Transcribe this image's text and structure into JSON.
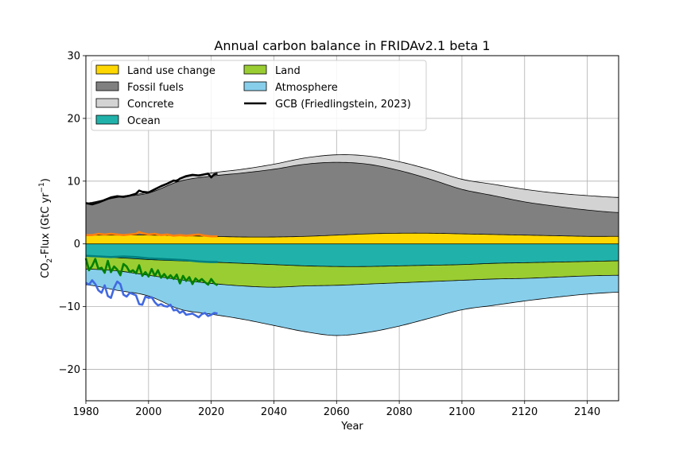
{
  "chart_data": {
    "type": "area",
    "title": "Annual carbon balance in FRIDAv2.1 beta 1",
    "xlabel": "Year",
    "ylabel": "CO2-Flux (GtC yr⁻¹)",
    "ylabel_parts": {
      "main": "CO",
      "sub": "2",
      "rest": "-Flux (GtC yr",
      "sup": "−1",
      "end": ")"
    },
    "xlim": [
      1980,
      2150
    ],
    "ylim": [
      -25,
      30
    ],
    "x_ticks": [
      1980,
      2000,
      2020,
      2040,
      2060,
      2080,
      2100,
      2120,
      2140
    ],
    "y_ticks": [
      -20,
      -10,
      0,
      10,
      20,
      30
    ],
    "x_tick_labels": [
      "1980",
      "2000",
      "2020",
      "2040",
      "2060",
      "2080",
      "2100",
      "2120",
      "2140"
    ],
    "y_tick_labels": [
      "−20",
      "−10",
      "0",
      "10",
      "20",
      "30"
    ],
    "grid": true,
    "legend_position": "top-left",
    "legend": [
      {
        "label": "Land use change",
        "color": "#ffd700",
        "kind": "patch"
      },
      {
        "label": "Fossil fuels",
        "color": "#808080",
        "kind": "patch"
      },
      {
        "label": "Concrete",
        "color": "#d3d3d3",
        "kind": "patch"
      },
      {
        "label": "Ocean",
        "color": "#20b2aa",
        "kind": "patch"
      },
      {
        "label": "Land",
        "color": "#9acd32",
        "kind": "patch"
      },
      {
        "label": "Atmosphere",
        "color": "#87ceeb",
        "kind": "patch"
      },
      {
        "label": "GCB (Friedlingstein, 2023)",
        "color": "#000000",
        "kind": "line"
      }
    ],
    "years": [
      1980,
      1990,
      2000,
      2010,
      2020,
      2030,
      2040,
      2050,
      2060,
      2070,
      2080,
      2090,
      2100,
      2110,
      2120,
      2130,
      2140,
      2150
    ],
    "series": [
      {
        "name": "Land use change",
        "color": "#ffd700",
        "side": "positive",
        "values": [
          1.4,
          1.4,
          1.4,
          1.3,
          1.2,
          1.1,
          1.1,
          1.2,
          1.4,
          1.6,
          1.7,
          1.7,
          1.6,
          1.5,
          1.4,
          1.3,
          1.2,
          1.2
        ]
      },
      {
        "name": "Fossil fuels",
        "color": "#808080",
        "side": "positive",
        "values": [
          5.0,
          6.0,
          6.7,
          8.7,
          9.6,
          10.2,
          10.8,
          11.5,
          11.6,
          11.1,
          10.0,
          8.6,
          7.1,
          6.2,
          5.3,
          4.7,
          4.2,
          3.8
        ]
      },
      {
        "name": "Concrete",
        "color": "#d3d3d3",
        "side": "positive",
        "values": [
          0.1,
          0.1,
          0.2,
          0.4,
          0.5,
          0.6,
          0.8,
          1.0,
          1.2,
          1.3,
          1.4,
          1.5,
          1.6,
          1.8,
          2.0,
          2.1,
          2.3,
          2.4
        ]
      },
      {
        "name": "Ocean",
        "color": "#20b2aa",
        "side": "negative",
        "values": [
          -2.0,
          -2.2,
          -2.5,
          -2.7,
          -2.9,
          -3.1,
          -3.3,
          -3.5,
          -3.6,
          -3.6,
          -3.5,
          -3.4,
          -3.3,
          -3.1,
          -3.0,
          -2.9,
          -2.8,
          -2.7
        ]
      },
      {
        "name": "Land",
        "color": "#9acd32",
        "side": "negative",
        "values": [
          -2.0,
          -2.1,
          -2.5,
          -3.0,
          -3.4,
          -3.6,
          -3.6,
          -3.2,
          -3.0,
          -2.8,
          -2.7,
          -2.6,
          -2.5,
          -2.5,
          -2.5,
          -2.4,
          -2.3,
          -2.3
        ]
      },
      {
        "name": "Atmosphere",
        "color": "#87ceeb",
        "side": "negative",
        "values": [
          -2.5,
          -3.1,
          -3.3,
          -4.7,
          -4.9,
          -5.3,
          -6.1,
          -7.3,
          -8.0,
          -7.7,
          -6.9,
          -5.8,
          -4.7,
          -4.2,
          -3.6,
          -3.2,
          -2.9,
          -2.7
        ]
      }
    ],
    "observations": [
      {
        "name": "GCB fossil + concrete",
        "color": "#000000",
        "x": [
          1980,
          1982,
          1984,
          1986,
          1988,
          1990,
          1992,
          1994,
          1996,
          1997,
          1998,
          2000,
          2002,
          2004,
          2006,
          2008,
          2009,
          2010,
          2012,
          2014,
          2016,
          2018,
          2019,
          2020,
          2021,
          2022
        ],
        "y": [
          6.5,
          6.3,
          6.6,
          7.0,
          7.4,
          7.6,
          7.5,
          7.7,
          8.0,
          8.5,
          8.3,
          8.2,
          8.7,
          9.2,
          9.6,
          10.1,
          10.0,
          10.4,
          10.8,
          11.0,
          10.9,
          11.1,
          11.2,
          10.6,
          11.1,
          11.2
        ]
      },
      {
        "name": "GCB land use change",
        "color": "#ff7f0e",
        "x": [
          1980,
          1982,
          1984,
          1986,
          1988,
          1990,
          1992,
          1994,
          1996,
          1997,
          1998,
          2000,
          2002,
          2004,
          2006,
          2008,
          2010,
          2012,
          2014,
          2016,
          2018,
          2020,
          2022
        ],
        "y": [
          1.4,
          1.4,
          1.6,
          1.5,
          1.6,
          1.5,
          1.4,
          1.5,
          1.6,
          1.9,
          1.7,
          1.5,
          1.6,
          1.4,
          1.5,
          1.3,
          1.4,
          1.3,
          1.4,
          1.5,
          1.3,
          1.2,
          1.2
        ]
      },
      {
        "name": "GCB ocean sink",
        "color": "#008080",
        "x": [
          1980,
          1984,
          1988,
          1992,
          1996,
          2000,
          2004,
          2008,
          2012,
          2016,
          2020,
          2022
        ],
        "y": [
          -1.9,
          -2.0,
          -2.1,
          -2.0,
          -2.1,
          -2.3,
          -2.4,
          -2.5,
          -2.6,
          -2.8,
          -2.9,
          -2.9
        ]
      },
      {
        "name": "GCB land sink",
        "color": "#008000",
        "x": [
          1980,
          1981,
          1982,
          1983,
          1984,
          1985,
          1986,
          1987,
          1988,
          1989,
          1990,
          1991,
          1992,
          1993,
          1994,
          1995,
          1996,
          1997,
          1998,
          1999,
          2000,
          2001,
          2002,
          2003,
          2004,
          2005,
          2006,
          2007,
          2008,
          2009,
          2010,
          2011,
          2012,
          2013,
          2014,
          2015,
          2016,
          2017,
          2018,
          2019,
          2020,
          2021,
          2022
        ],
        "y": [
          -2.3,
          -4.2,
          -3.5,
          -2.4,
          -4.0,
          -3.8,
          -4.6,
          -2.7,
          -4.5,
          -3.6,
          -4.1,
          -5.0,
          -3.2,
          -3.6,
          -4.5,
          -4.2,
          -4.7,
          -3.4,
          -5.1,
          -4.5,
          -5.2,
          -4.0,
          -5.1,
          -4.2,
          -5.4,
          -4.8,
          -5.5,
          -5.0,
          -5.6,
          -4.9,
          -6.3,
          -5.1,
          -5.9,
          -5.3,
          -6.4,
          -5.5,
          -6.0,
          -5.6,
          -6.1,
          -6.5,
          -5.6,
          -6.3,
          -6.6
        ]
      },
      {
        "name": "GCB atmosphere",
        "color": "#4169e1",
        "x": [
          1980,
          1981,
          1982,
          1983,
          1984,
          1985,
          1986,
          1987,
          1988,
          1989,
          1990,
          1991,
          1992,
          1993,
          1994,
          1995,
          1996,
          1997,
          1998,
          1999,
          2000,
          2001,
          2002,
          2003,
          2004,
          2005,
          2006,
          2007,
          2008,
          2009,
          2010,
          2011,
          2012,
          2013,
          2014,
          2015,
          2016,
          2017,
          2018,
          2019,
          2020,
          2021,
          2022
        ],
        "y": [
          -6.2,
          -6.5,
          -5.8,
          -6.4,
          -7.4,
          -7.8,
          -6.6,
          -8.3,
          -8.6,
          -7.0,
          -6.0,
          -6.4,
          -8.1,
          -8.4,
          -7.8,
          -8.0,
          -8.2,
          -9.6,
          -9.7,
          -8.4,
          -8.6,
          -8.5,
          -9.3,
          -9.8,
          -9.6,
          -9.9,
          -10.0,
          -9.7,
          -10.6,
          -10.5,
          -11.0,
          -10.7,
          -11.3,
          -11.2,
          -11.1,
          -11.4,
          -11.7,
          -11.2,
          -11.0,
          -11.5,
          -11.3,
          -11.0,
          -11.1
        ]
      }
    ]
  }
}
